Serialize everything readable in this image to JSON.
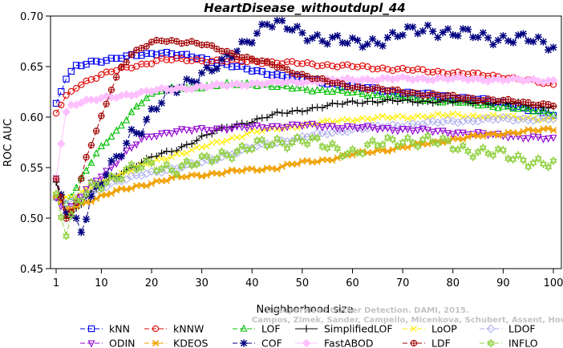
{
  "chart_data": {
    "type": "line",
    "title": "HeartDisease_withoutdupl_44",
    "xlabel": "Neighborhood size",
    "ylabel": "ROC AUC",
    "xlim": [
      1,
      100
    ],
    "ylim": [
      0.45,
      0.7
    ],
    "xticks": [
      1,
      10,
      20,
      30,
      40,
      50,
      60,
      70,
      80,
      90,
      100
    ],
    "yticks": [
      0.45,
      0.5,
      0.55,
      0.6,
      0.65,
      0.7
    ],
    "x_tick_labels": [
      "1",
      "10",
      "20",
      "30",
      "40",
      "50",
      "60",
      "70",
      "80",
      "90",
      "100"
    ],
    "y_tick_labels": [
      "0.45",
      "0.50",
      "0.55",
      "0.60",
      "0.65",
      "0.70"
    ],
    "grid": false,
    "legend_position": "bottom",
    "watermark": [
      "Unsupervised Outlier Detection. DAMI, 2015.",
      "Campos, Zimek, Sander, Campello, Micenkova, Schubert, Assent, Houle"
    ],
    "series": [
      {
        "name": "kNN",
        "color": "#0000ee",
        "marker": "square",
        "dash": "6,3",
        "keypoints": [
          [
            1,
            0.612
          ],
          [
            2,
            0.625
          ],
          [
            3,
            0.638
          ],
          [
            5,
            0.65
          ],
          [
            8,
            0.655
          ],
          [
            12,
            0.657
          ],
          [
            18,
            0.662
          ],
          [
            22,
            0.664
          ],
          [
            30,
            0.658
          ],
          [
            40,
            0.646
          ],
          [
            50,
            0.638
          ],
          [
            60,
            0.63
          ],
          [
            70,
            0.624
          ],
          [
            80,
            0.62
          ],
          [
            90,
            0.614
          ],
          [
            100,
            0.601
          ]
        ]
      },
      {
        "name": "kNNW",
        "color": "#e00000",
        "marker": "circle",
        "dash": "6,3",
        "keypoints": [
          [
            1,
            0.604
          ],
          [
            3,
            0.62
          ],
          [
            5,
            0.63
          ],
          [
            8,
            0.638
          ],
          [
            12,
            0.645
          ],
          [
            18,
            0.652
          ],
          [
            22,
            0.657
          ],
          [
            30,
            0.656
          ],
          [
            40,
            0.655
          ],
          [
            50,
            0.653
          ],
          [
            60,
            0.65
          ],
          [
            70,
            0.647
          ],
          [
            80,
            0.644
          ],
          [
            90,
            0.64
          ],
          [
            100,
            0.632
          ]
        ]
      },
      {
        "name": "LOF",
        "color": "#00c000",
        "marker": "triangle-up",
        "dash": "6,3",
        "keypoints": [
          [
            1,
            0.52
          ],
          [
            3,
            0.515
          ],
          [
            5,
            0.53
          ],
          [
            7,
            0.548
          ],
          [
            10,
            0.57
          ],
          [
            13,
            0.585
          ],
          [
            16,
            0.605
          ],
          [
            19,
            0.62
          ],
          [
            22,
            0.626
          ],
          [
            26,
            0.629
          ],
          [
            30,
            0.63
          ],
          [
            35,
            0.632
          ],
          [
            40,
            0.633
          ],
          [
            45,
            0.63
          ],
          [
            50,
            0.628
          ],
          [
            60,
            0.624
          ],
          [
            70,
            0.619
          ],
          [
            80,
            0.615
          ],
          [
            90,
            0.61
          ],
          [
            100,
            0.604
          ]
        ]
      },
      {
        "name": "SimplifiedLOF",
        "color": "#000000",
        "marker": "plus",
        "dash": "",
        "keypoints": [
          [
            1,
            0.535
          ],
          [
            3,
            0.502
          ],
          [
            5,
            0.51
          ],
          [
            8,
            0.525
          ],
          [
            12,
            0.54
          ],
          [
            16,
            0.55
          ],
          [
            20,
            0.56
          ],
          [
            25,
            0.568
          ],
          [
            30,
            0.58
          ],
          [
            35,
            0.59
          ],
          [
            40,
            0.596
          ],
          [
            45,
            0.603
          ],
          [
            50,
            0.607
          ],
          [
            55,
            0.611
          ],
          [
            60,
            0.615
          ],
          [
            70,
            0.616
          ],
          [
            80,
            0.615
          ],
          [
            90,
            0.614
          ],
          [
            100,
            0.61
          ]
        ]
      },
      {
        "name": "LoOP",
        "color": "#ffee00",
        "marker": "x",
        "dash": "6,3",
        "keypoints": [
          [
            1,
            0.525
          ],
          [
            3,
            0.52
          ],
          [
            5,
            0.522
          ],
          [
            8,
            0.53
          ],
          [
            12,
            0.54
          ],
          [
            16,
            0.548
          ],
          [
            20,
            0.555
          ],
          [
            25,
            0.563
          ],
          [
            30,
            0.57
          ],
          [
            40,
            0.585
          ],
          [
            50,
            0.592
          ],
          [
            60,
            0.598
          ],
          [
            70,
            0.6
          ],
          [
            80,
            0.602
          ],
          [
            90,
            0.6
          ],
          [
            100,
            0.598
          ]
        ]
      },
      {
        "name": "LDOF",
        "color": "#b0b0ee",
        "marker": "diamond",
        "dash": "6,3",
        "keypoints": [
          [
            1,
            0.52
          ],
          [
            3,
            0.515
          ],
          [
            5,
            0.518
          ],
          [
            8,
            0.525
          ],
          [
            12,
            0.535
          ],
          [
            16,
            0.54
          ],
          [
            20,
            0.545
          ],
          [
            25,
            0.55
          ],
          [
            30,
            0.555
          ],
          [
            40,
            0.57
          ],
          [
            50,
            0.58
          ],
          [
            60,
            0.588
          ],
          [
            70,
            0.592
          ],
          [
            80,
            0.596
          ],
          [
            90,
            0.598
          ],
          [
            100,
            0.598
          ]
        ]
      },
      {
        "name": "ODIN",
        "color": "#9000d0",
        "marker": "triangle-down",
        "dash": "6,3",
        "keypoints": [
          [
            1,
            0.52
          ],
          [
            3,
            0.505
          ],
          [
            5,
            0.515
          ],
          [
            8,
            0.535
          ],
          [
            12,
            0.55
          ],
          [
            15,
            0.565
          ],
          [
            18,
            0.578
          ],
          [
            20,
            0.582
          ],
          [
            25,
            0.586
          ],
          [
            30,
            0.588
          ],
          [
            40,
            0.59
          ],
          [
            50,
            0.592
          ],
          [
            60,
            0.59
          ],
          [
            70,
            0.588
          ],
          [
            80,
            0.585
          ],
          [
            90,
            0.582
          ],
          [
            100,
            0.578
          ]
        ]
      },
      {
        "name": "KDEOS",
        "color": "#f0a000",
        "marker": "asterisk",
        "dash": "6,3",
        "keypoints": [
          [
            1,
            0.522
          ],
          [
            3,
            0.508
          ],
          [
            5,
            0.512
          ],
          [
            8,
            0.518
          ],
          [
            12,
            0.525
          ],
          [
            16,
            0.53
          ],
          [
            20,
            0.535
          ],
          [
            25,
            0.54
          ],
          [
            30,
            0.543
          ],
          [
            40,
            0.548
          ],
          [
            45,
            0.55
          ],
          [
            50,
            0.555
          ],
          [
            55,
            0.558
          ],
          [
            60,
            0.563
          ],
          [
            70,
            0.57
          ],
          [
            80,
            0.578
          ],
          [
            90,
            0.584
          ],
          [
            100,
            0.588
          ]
        ]
      },
      {
        "name": "COF",
        "color": "#000080",
        "marker": "star",
        "dash": "6,3",
        "keypoints": [
          [
            1,
            0.533
          ],
          [
            3,
            0.51
          ],
          [
            5,
            0.498
          ],
          [
            6,
            0.49
          ],
          [
            8,
            0.52
          ],
          [
            10,
            0.535
          ],
          [
            12,
            0.55
          ],
          [
            14,
            0.565
          ],
          [
            16,
            0.585
          ],
          [
            18,
            0.59
          ],
          [
            20,
            0.605
          ],
          [
            23,
            0.62
          ],
          [
            26,
            0.63
          ],
          [
            30,
            0.645
          ],
          [
            34,
            0.652
          ],
          [
            37,
            0.665
          ],
          [
            40,
            0.68
          ],
          [
            43,
            0.695
          ],
          [
            46,
            0.69
          ],
          [
            50,
            0.682
          ],
          [
            55,
            0.678
          ],
          [
            60,
            0.672
          ],
          [
            65,
            0.676
          ],
          [
            70,
            0.682
          ],
          [
            75,
            0.688
          ],
          [
            80,
            0.683
          ],
          [
            85,
            0.68
          ],
          [
            90,
            0.678
          ],
          [
            95,
            0.676
          ],
          [
            100,
            0.672
          ]
        ]
      },
      {
        "name": "FastABOD",
        "color": "#ffc0ff",
        "marker": "diamond-filled",
        "dash": "",
        "keypoints": [
          [
            1,
            0.54
          ],
          [
            2,
            0.575
          ],
          [
            3,
            0.605
          ],
          [
            4,
            0.612
          ],
          [
            6,
            0.615
          ],
          [
            10,
            0.618
          ],
          [
            15,
            0.622
          ],
          [
            20,
            0.626
          ],
          [
            30,
            0.63
          ],
          [
            40,
            0.633
          ],
          [
            50,
            0.635
          ],
          [
            60,
            0.637
          ],
          [
            70,
            0.638
          ],
          [
            80,
            0.638
          ],
          [
            90,
            0.637
          ],
          [
            100,
            0.636
          ]
        ]
      },
      {
        "name": "LDF",
        "color": "#a00000",
        "marker": "circle-plus",
        "dash": "6,3",
        "keypoints": [
          [
            1,
            0.54
          ],
          [
            3,
            0.5
          ],
          [
            5,
            0.515
          ],
          [
            7,
            0.56
          ],
          [
            9,
            0.585
          ],
          [
            10,
            0.6
          ],
          [
            12,
            0.628
          ],
          [
            14,
            0.65
          ],
          [
            16,
            0.662
          ],
          [
            18,
            0.668
          ],
          [
            20,
            0.673
          ],
          [
            22,
            0.676
          ],
          [
            25,
            0.675
          ],
          [
            28,
            0.674
          ],
          [
            30,
            0.672
          ],
          [
            34,
            0.666
          ],
          [
            38,
            0.66
          ],
          [
            42,
            0.655
          ],
          [
            46,
            0.648
          ],
          [
            50,
            0.642
          ],
          [
            55,
            0.635
          ],
          [
            60,
            0.63
          ],
          [
            70,
            0.625
          ],
          [
            80,
            0.62
          ],
          [
            90,
            0.616
          ],
          [
            100,
            0.612
          ]
        ]
      },
      {
        "name": "INFLO",
        "color": "#90d040",
        "marker": "hexstar",
        "dash": "6,3",
        "keypoints": [
          [
            1,
            0.522
          ],
          [
            3,
            0.486
          ],
          [
            5,
            0.512
          ],
          [
            8,
            0.53
          ],
          [
            12,
            0.54
          ],
          [
            16,
            0.548
          ],
          [
            20,
            0.552
          ],
          [
            25,
            0.55
          ],
          [
            30,
            0.555
          ],
          [
            35,
            0.565
          ],
          [
            40,
            0.57
          ],
          [
            45,
            0.575
          ],
          [
            50,
            0.578
          ],
          [
            55,
            0.57
          ],
          [
            60,
            0.566
          ],
          [
            65,
            0.572
          ],
          [
            70,
            0.578
          ],
          [
            75,
            0.576
          ],
          [
            80,
            0.572
          ],
          [
            85,
            0.566
          ],
          [
            90,
            0.562
          ],
          [
            95,
            0.558
          ],
          [
            100,
            0.552
          ]
        ]
      }
    ]
  }
}
